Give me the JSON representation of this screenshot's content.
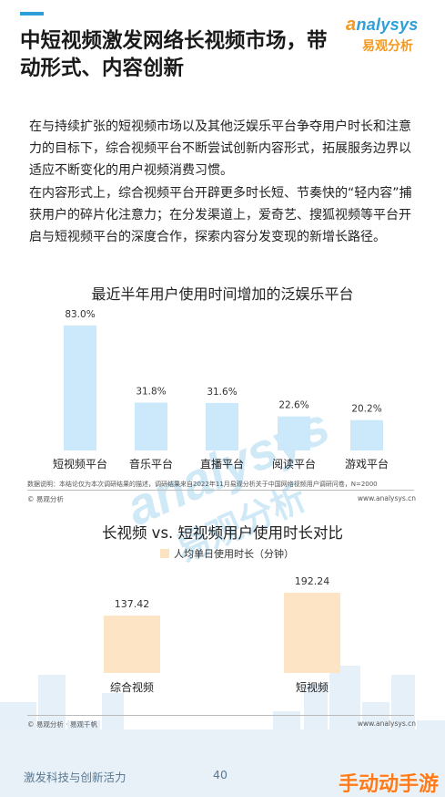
{
  "header": {
    "title": "中短视频激发网络长视频市场，带动形式、内容创新",
    "logo_en_mark": "a",
    "logo_en_rest": "nalysys",
    "logo_cn": "易观分析"
  },
  "paragraphs": [
    "在与持续扩张的短视频市场以及其他泛娱乐平台争夺用户时长和注意力的目标下，综合视频平台不断尝试创新内容形式，拓展服务边界以适应不断变化的用户视频消费习惯。",
    "在内容形式上，综合视频平台开辟更多时长短、节奏快的“轻内容”捕获用户的碎片化注意力；在分发渠道上，爱奇艺、搜狐视频等平台开启与短视频平台的深度合作，探索内容分发变现的新增长路径。"
  ],
  "colors": {
    "bar_blue": "#cce9fb",
    "bar_orange": "#fde4c4",
    "accent": "#2e9fd9",
    "logo_orange": "#f39a1e"
  },
  "chart_data": [
    {
      "type": "bar",
      "title": "最近半年用户使用时间增加的泛娱乐平台",
      "categories": [
        "短视频平台",
        "音乐平台",
        "直播平台",
        "阅读平台",
        "游戏平台"
      ],
      "values": [
        83.0,
        31.8,
        31.6,
        22.6,
        20.2
      ],
      "value_labels": [
        "83.0%",
        "31.8%",
        "31.6%",
        "22.6%",
        "20.2%"
      ],
      "ylim": [
        0,
        90
      ],
      "grid": false,
      "legend": "none"
    },
    {
      "type": "bar",
      "title": "长视频 vs. 短视频用户使用时长对比",
      "categories": [
        "综合视频",
        "短视频"
      ],
      "series": [
        {
          "name": "人均单日使用时长（分钟）",
          "values": [
            137.42,
            192.24
          ]
        }
      ],
      "value_labels": [
        "137.42",
        "192.24"
      ],
      "ylim": [
        0,
        230
      ],
      "grid": false,
      "legend": "top"
    }
  ],
  "notes": {
    "chart1_note": "数据说明：本结论仅为本次调研结果的描述，调研结果来自2022年11月易观分析关于中国网络视频用户调研问卷，N=2000",
    "chart1_source_left": "© 易观分析",
    "chart1_source_right": "www.analysys.cn",
    "chart2_source_left": "© 易观分析 · 易观千帆",
    "chart2_source_right": "www.analysys.cn"
  },
  "watermark": {
    "en": "analysys",
    "cn": "易观分析"
  },
  "footer": {
    "text": "激发科技与创新活力",
    "page": "40",
    "corner_mark": "手动动手游"
  }
}
